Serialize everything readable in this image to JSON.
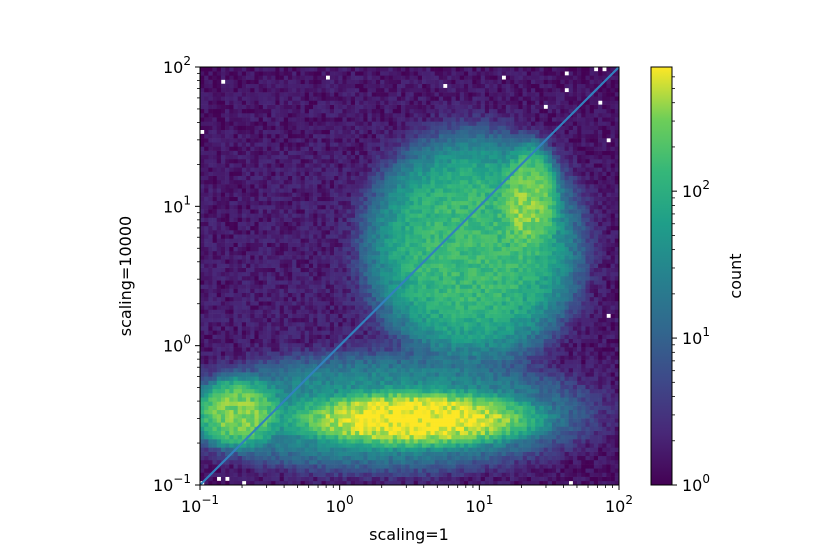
{
  "chart_data": {
    "type": "heatmap",
    "title": "",
    "xlabel": "scaling=1",
    "ylabel": "scaling=10000",
    "xscale": "log",
    "yscale": "log",
    "xlim": [
      0.1,
      100
    ],
    "ylim": [
      0.1,
      100
    ],
    "x_ticks": [
      {
        "value": 0.1,
        "base": "10",
        "exp": "−1"
      },
      {
        "value": 1,
        "base": "10",
        "exp": "0"
      },
      {
        "value": 10,
        "base": "10",
        "exp": "1"
      },
      {
        "value": 100,
        "base": "10",
        "exp": "2"
      }
    ],
    "y_ticks": [
      {
        "value": 0.1,
        "base": "10",
        "exp": "−1"
      },
      {
        "value": 1,
        "base": "10",
        "exp": "0"
      },
      {
        "value": 10,
        "base": "10",
        "exp": "1"
      },
      {
        "value": 100,
        "base": "10",
        "exp": "2"
      }
    ],
    "colormap": "viridis",
    "colorbar": {
      "label": "count",
      "scale": "log",
      "range": [
        1,
        700
      ],
      "ticks": [
        {
          "value": 1,
          "base": "10",
          "exp": "0"
        },
        {
          "value": 10,
          "base": "10",
          "exp": "1"
        },
        {
          "value": 100,
          "base": "10",
          "exp": "2"
        }
      ]
    },
    "grid": false,
    "reference_line": {
      "type": "y=x",
      "color": "#3182bd"
    },
    "density_regions": [
      {
        "x_range": [
          0.1,
          0.35
        ],
        "y_range": [
          0.2,
          0.55
        ],
        "peak_count": 300
      },
      {
        "x_range": [
          0.6,
          20
        ],
        "y_range": [
          0.2,
          0.45
        ],
        "peak_count": 700
      },
      {
        "x_range": [
          0.1,
          40
        ],
        "y_range": [
          0.14,
          0.8
        ],
        "peak_count": 40
      },
      {
        "x_range": [
          2,
          40
        ],
        "y_range": [
          1,
          25
        ],
        "peak_count": 150
      },
      {
        "x_range": [
          15,
          35
        ],
        "y_range": [
          5,
          25
        ],
        "peak_count": 250
      },
      {
        "x_range": [
          0.1,
          60
        ],
        "y_range": [
          0.1,
          60
        ],
        "peak_count": 2
      }
    ],
    "colors": {
      "viridis_low": "#440154",
      "viridis_mid": "#21918c",
      "viridis_high": "#fde725",
      "line": "#3182bd"
    }
  }
}
